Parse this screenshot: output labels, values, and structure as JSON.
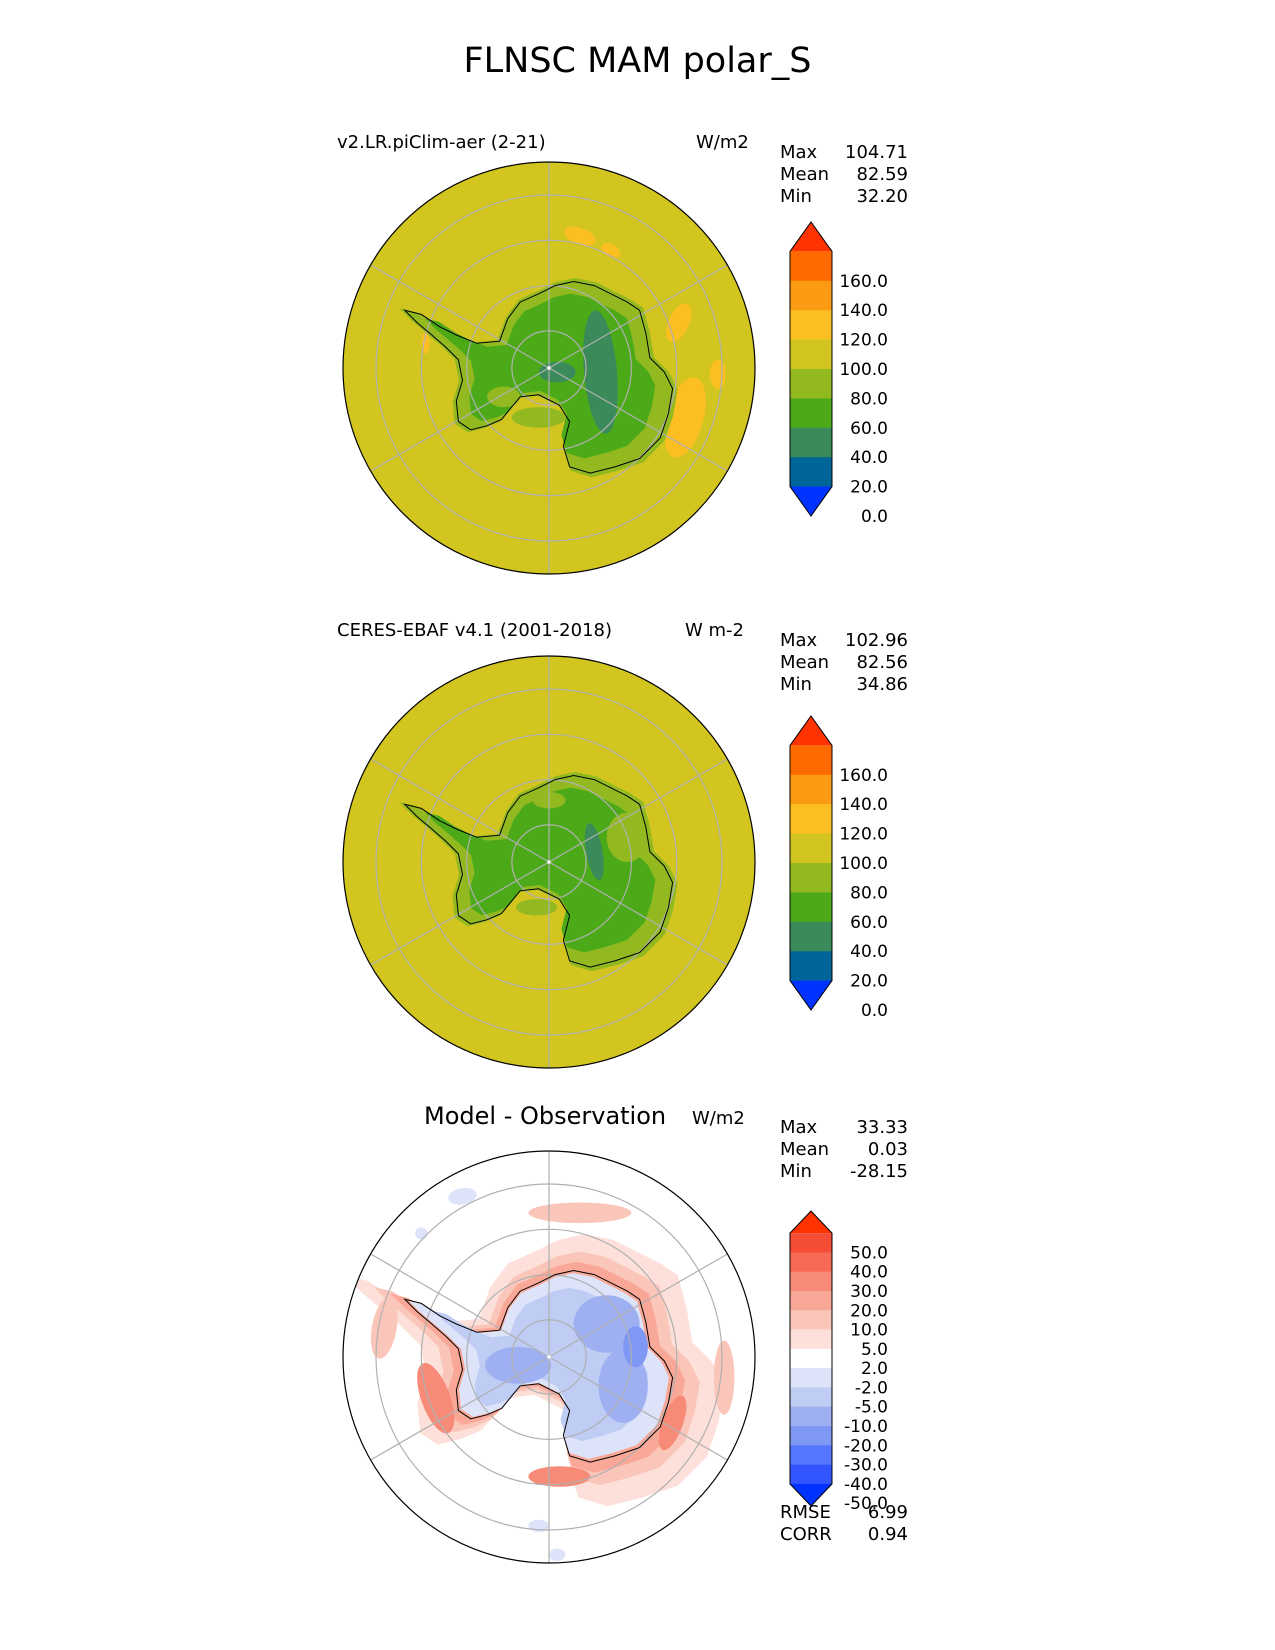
{
  "figure": {
    "title": "FLNSC MAM polar_S"
  },
  "colors": {
    "abs_levels": [
      "#0033ff",
      "#006699",
      "#3a8a5a",
      "#4caa19",
      "#93b920",
      "#d2c51f",
      "#fbbf22",
      "#fc9a12",
      "#ff6a00",
      "#ff3300"
    ],
    "diff_levels": [
      "#0033ff",
      "#3355ff",
      "#5577ff",
      "#7f98f4",
      "#9fb0f2",
      "#bfcdf5",
      "#dde4fa",
      "#ffffff",
      "#fde0da",
      "#fbc6ba",
      "#f9a898",
      "#f88a78",
      "#f76a55",
      "#f54d35",
      "#ff3300"
    ],
    "land_outline": "#000000",
    "grid": "#b0b0b0"
  },
  "panels": [
    {
      "title": "v2.LR.piClim-aer (2-21)",
      "units": "W/m2",
      "stats": [
        {
          "label": "Max",
          "value": "104.71"
        },
        {
          "label": "Mean",
          "value": "82.59"
        },
        {
          "label": "Min",
          "value": "32.20"
        }
      ],
      "colorbar_ticks": [
        "160.0",
        "140.0",
        "120.0",
        "100.0",
        "80.0",
        "60.0",
        "40.0",
        "20.0",
        "0.0"
      ]
    },
    {
      "title": "CERES-EBAF v4.1 (2001-2018)",
      "units": "W m-2",
      "stats": [
        {
          "label": "Max",
          "value": "102.96"
        },
        {
          "label": "Mean",
          "value": "82.56"
        },
        {
          "label": "Min",
          "value": "34.86"
        }
      ],
      "colorbar_ticks": [
        "160.0",
        "140.0",
        "120.0",
        "100.0",
        "80.0",
        "60.0",
        "40.0",
        "20.0",
        "0.0"
      ]
    },
    {
      "title": "Model - Observation",
      "units": "W/m2",
      "stats": [
        {
          "label": "Max",
          "value": "33.33"
        },
        {
          "label": "Mean",
          "value": "0.03"
        },
        {
          "label": "Min",
          "value": "-28.15"
        }
      ],
      "colorbar_ticks": [
        "50.0",
        "40.0",
        "30.0",
        "20.0",
        "10.0",
        "5.0",
        "2.0",
        "-2.0",
        "-5.0",
        "-10.0",
        "-20.0",
        "-30.0",
        "-40.0",
        "-50.0"
      ],
      "metrics": [
        {
          "label": "RMSE",
          "value": "6.99"
        },
        {
          "label": "CORR",
          "value": "0.94"
        }
      ]
    }
  ],
  "chart_data": [
    {
      "type": "heatmap",
      "projection": "south polar stereographic",
      "title": "v2.LR.piClim-aer (2-21)",
      "units": "W/m2",
      "levels": [
        0,
        20,
        40,
        60,
        80,
        100,
        120,
        140,
        160
      ],
      "extend": "both",
      "stats": {
        "max": 104.71,
        "mean": 82.59,
        "min": 32.2
      }
    },
    {
      "type": "heatmap",
      "projection": "south polar stereographic",
      "title": "CERES-EBAF v4.1 (2001-2018)",
      "units": "W m-2",
      "levels": [
        0,
        20,
        40,
        60,
        80,
        100,
        120,
        140,
        160
      ],
      "extend": "both",
      "stats": {
        "max": 102.96,
        "mean": 82.56,
        "min": 34.86
      }
    },
    {
      "type": "heatmap",
      "projection": "south polar stereographic",
      "title": "Model - Observation",
      "units": "W/m2",
      "levels": [
        -50,
        -40,
        -30,
        -20,
        -10,
        -5,
        -2,
        2,
        5,
        10,
        20,
        30,
        40,
        50
      ],
      "extend": "both",
      "stats": {
        "max": 33.33,
        "mean": 0.03,
        "min": -28.15,
        "rmse": 6.99,
        "corr": 0.94
      }
    }
  ]
}
